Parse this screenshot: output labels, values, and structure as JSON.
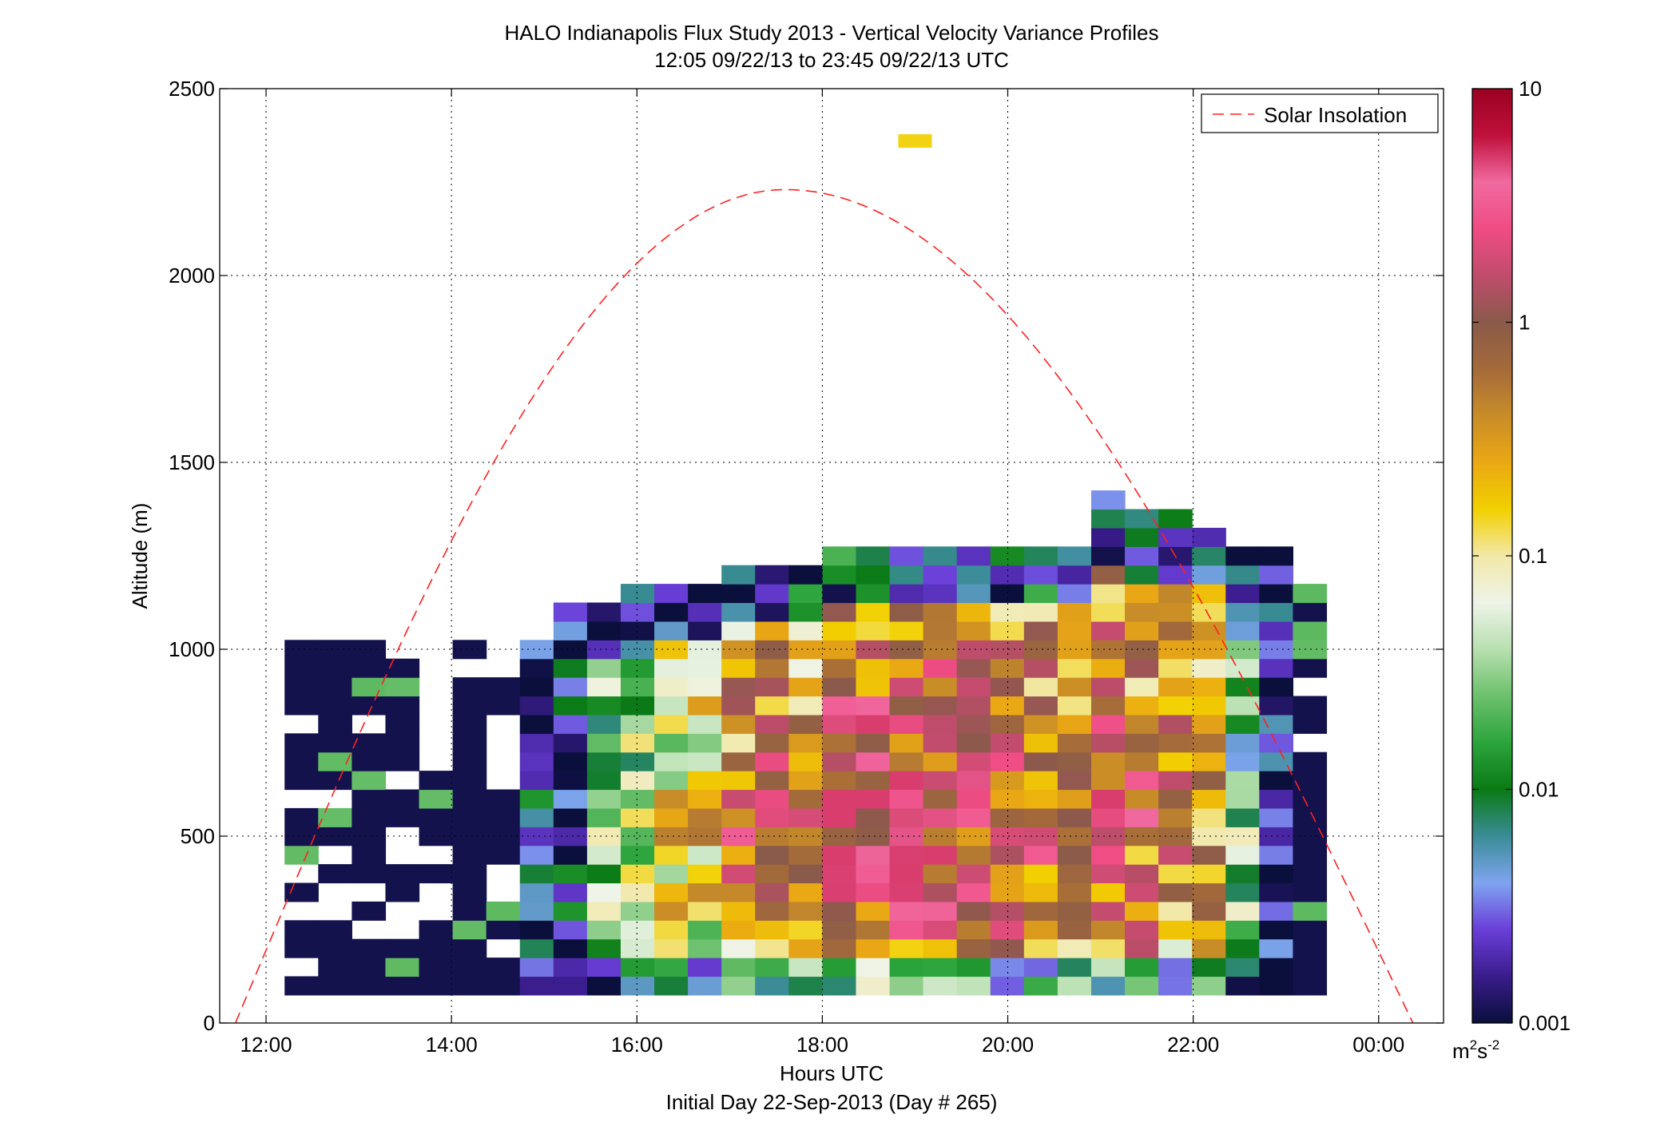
{
  "chart_data": {
    "type": "heatmap",
    "title": "HALO Indianapolis Flux Study 2013 - Vertical Velocity Variance Profiles",
    "subtitle": "12:05 09/22/13 to 23:45 09/22/13  UTC",
    "xlabel": "Hours UTC",
    "xlabel2": "Initial Day 22-Sep-2013 (Day # 265)",
    "ylabel": "Altitude (m)",
    "xlim": [
      11.5,
      24.7
    ],
    "ylim": [
      0,
      2500
    ],
    "x_ticks": [
      12,
      14,
      16,
      18,
      20,
      22,
      24
    ],
    "x_tick_labels": [
      "12:00",
      "14:00",
      "16:00",
      "18:00",
      "20:00",
      "22:00",
      "00:00"
    ],
    "y_ticks": [
      0,
      500,
      1000,
      1500,
      2000,
      2500
    ],
    "y_tick_labels": [
      "0",
      "500",
      "1000",
      "1500",
      "2000",
      "2500"
    ],
    "grid": true,
    "legend": {
      "position": "top-right",
      "entries": [
        "Solar Insolation"
      ]
    },
    "colorbar": {
      "scale": "log",
      "range": [
        0.001,
        10
      ],
      "ticks": [
        0.001,
        0.01,
        0.1,
        1,
        10
      ],
      "tick_labels": [
        "0.001",
        "0.01",
        "0.1",
        "1",
        "10"
      ],
      "unit_base": "m",
      "unit_exp1": "2",
      "unit_mid": "s",
      "unit_exp2": "-2",
      "stops": [
        "#0a0f3c",
        "#3a1c8c",
        "#6a3ed8",
        "#7fa4f0",
        "#3a8c96",
        "#0a7a14",
        "#2ca43c",
        "#6cc06c",
        "#b8e0b0",
        "#eef4e8",
        "#f2e8a8",
        "#f2d000",
        "#eaa814",
        "#c88c28",
        "#a46a3a",
        "#8a5a4a",
        "#c04c6c",
        "#f04c84",
        "#f06aa0",
        "#c0103c",
        "#9a0020"
      ]
    },
    "grid_spec": {
      "t0": 12.2,
      "dt": 0.3625,
      "z0": 75,
      "dz": 50
    },
    "columns": [
      "A18",
      "A18",
      "A18",
      "A18",
      "A11",
      "A18",
      "A16",
      "C18",
      "C20",
      "E20",
      "E21",
      "F21",
      "F21",
      "G22",
      "G22",
      "G22",
      "H23",
      "H23",
      "H23",
      "H23",
      "H23",
      "H23",
      "H23",
      "H23",
      "I26",
      "I25",
      "I25",
      "I24",
      "F23",
      "C23",
      "B22"
    ],
    "curve": {
      "label": "Solar Insolation",
      "color": "#ff2020",
      "t_start": 11.67,
      "t_peak": 17.6,
      "t_end": 24.37,
      "y_peak": 2230
    },
    "isolated_cells": [
      {
        "t": 19.0,
        "z": 2360,
        "v": 0.15
      }
    ]
  }
}
